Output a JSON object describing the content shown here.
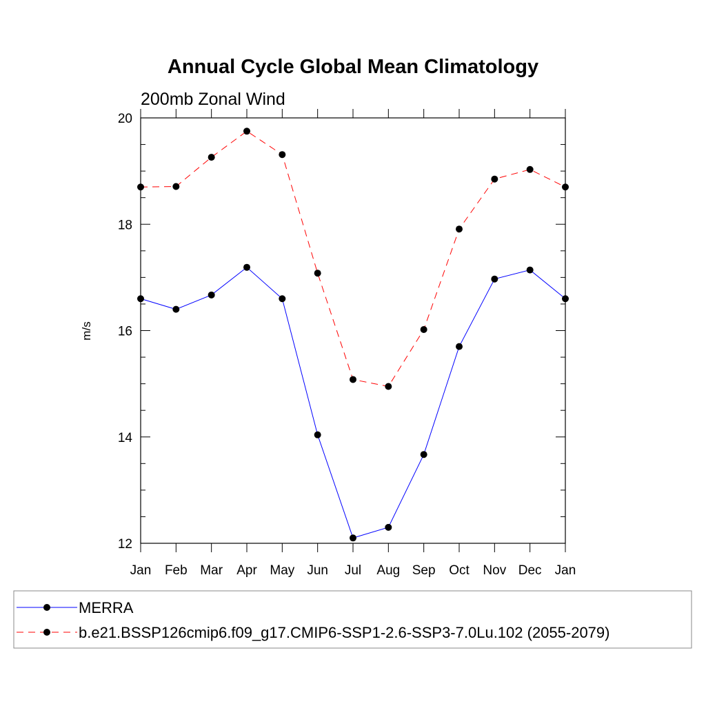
{
  "chart_data": {
    "type": "line",
    "title": "Annual Cycle Global Mean Climatology",
    "subtitle": "200mb Zonal Wind",
    "xlabel": "",
    "ylabel": "m/s",
    "categories": [
      "Jan",
      "Feb",
      "Mar",
      "Apr",
      "May",
      "Jun",
      "Jul",
      "Aug",
      "Sep",
      "Oct",
      "Nov",
      "Dec",
      "Jan"
    ],
    "ylim": [
      12,
      20
    ],
    "yticks": [
      12,
      14,
      16,
      18,
      20
    ],
    "grid": false,
    "legend_position": "bottom",
    "series": [
      {
        "name": "MERRA",
        "color": "#0000ff",
        "line_style": "solid",
        "marker": "filled-circle",
        "values": [
          16.6,
          16.4,
          16.67,
          17.19,
          16.6,
          14.04,
          12.1,
          12.3,
          13.67,
          15.7,
          16.97,
          17.14,
          16.6
        ]
      },
      {
        "name": "b.e21.BSSP126cmip6.f09_g17.CMIP6-SSP1-2.6-SSP3-7.0Lu.102 (2055-2079)",
        "color": "#ff0000",
        "line_style": "dashed",
        "marker": "filled-circle",
        "values": [
          18.7,
          18.71,
          19.26,
          19.75,
          19.31,
          17.08,
          15.08,
          14.95,
          16.02,
          17.91,
          18.85,
          19.03,
          18.7
        ]
      }
    ]
  }
}
